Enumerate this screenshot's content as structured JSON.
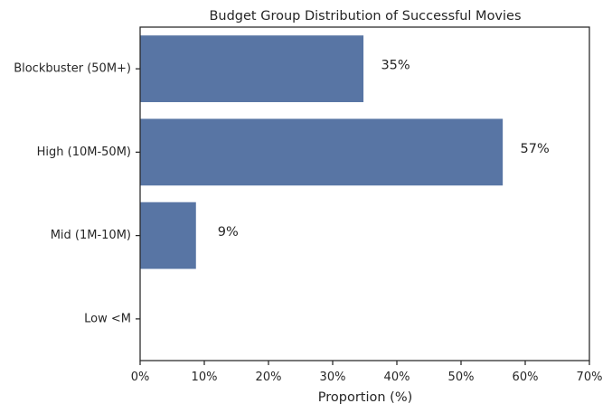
{
  "chart_data": {
    "type": "bar",
    "orientation": "horizontal",
    "title": "Budget Group Distribution of Successful Movies",
    "xlabel": "Proportion (%)",
    "ylabel": "",
    "categories": [
      "Blockbuster (50M+)",
      "High (10M-50M)",
      "Mid (1M-10M)",
      "Low <M"
    ],
    "values": [
      34.8,
      56.5,
      8.7,
      0
    ],
    "data_labels": [
      "35%",
      "57%",
      "9%",
      ""
    ],
    "xlim": [
      0,
      70
    ],
    "xticks": [
      0,
      10,
      20,
      30,
      40,
      50,
      60,
      70
    ],
    "xtick_labels": [
      "0%",
      "10%",
      "20%",
      "30%",
      "40%",
      "50%",
      "60%",
      "70%"
    ],
    "bar_color": "#5875a4",
    "grid": false,
    "legend": "none"
  }
}
